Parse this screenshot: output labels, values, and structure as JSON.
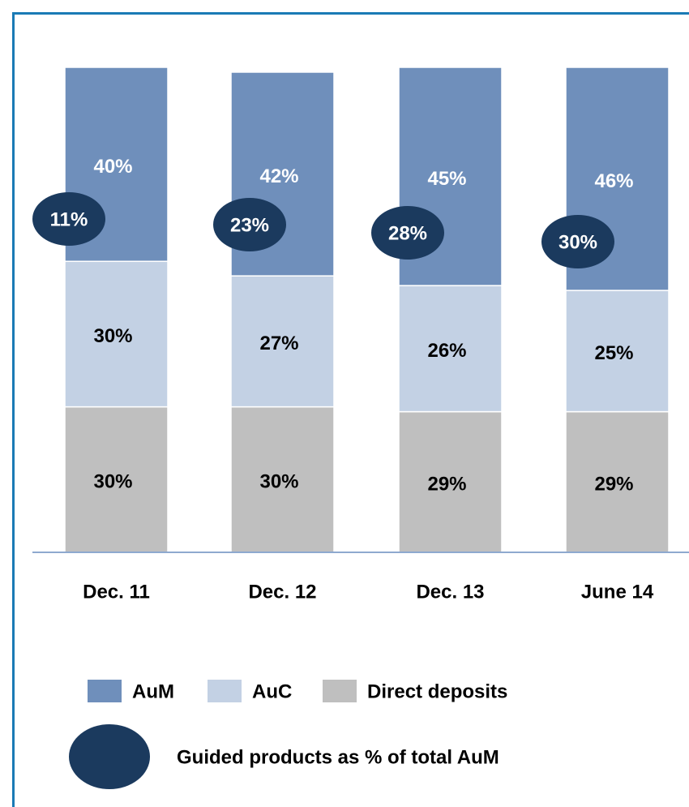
{
  "chart_data": {
    "type": "bar",
    "stacked": true,
    "categories": [
      "Dec. 11",
      "Dec. 12",
      "Dec. 13",
      "June 14"
    ],
    "series": [
      {
        "name": "AuM",
        "color": "#6f8fbb",
        "values": [
          40,
          42,
          45,
          46
        ],
        "value_labels": [
          "40%",
          "42%",
          "45%",
          "46%"
        ]
      },
      {
        "name": "AuC",
        "color": "#c3d1e4",
        "values": [
          30,
          27,
          26,
          25
        ],
        "value_labels": [
          "30%",
          "27%",
          "26%",
          "25%"
        ]
      },
      {
        "name": "Direct deposits",
        "color": "#bfbfbf",
        "values": [
          30,
          30,
          29,
          29
        ],
        "value_labels": [
          "30%",
          "30%",
          "29%",
          "29%"
        ]
      }
    ],
    "guided": {
      "name": "Guided products as % of total AuM",
      "color": "#1b3a5e",
      "values": [
        11,
        23,
        28,
        30
      ],
      "value_labels": [
        "11%",
        "23%",
        "28%",
        "30%"
      ]
    },
    "ylim": [
      0,
      100
    ]
  }
}
